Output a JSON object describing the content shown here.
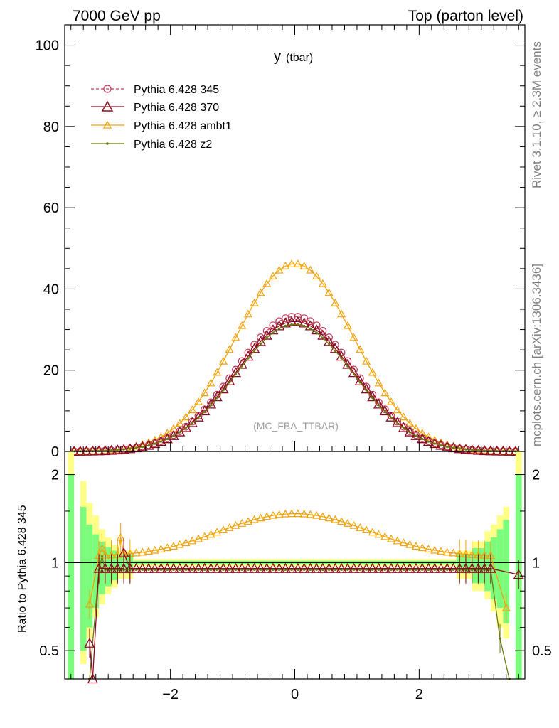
{
  "header": {
    "left": "7000 GeV pp",
    "right": "Top (parton level)"
  },
  "side_labels": {
    "rivet": "Rivet 3.1.10, ≥ 2.3M events",
    "mcplots": "mcplots.cern.ch [arXiv:1306.3436]"
  },
  "colors": {
    "p345": "#c0395a",
    "p370": "#8b0a1e",
    "ambt1": "#f0a30a",
    "z2": "#6b7a12",
    "band_green": "#7cfc7c",
    "band_yellow": "#ffff88"
  },
  "chart_data": [
    {
      "type": "line",
      "title_main": "y",
      "title_sub": "(tbar)",
      "watermark": "(MC_FBA_TTBAR)",
      "xlim": [
        -3.7,
        3.7
      ],
      "ylim": [
        0,
        105
      ],
      "yticks": [
        0,
        20,
        40,
        60,
        80,
        100
      ],
      "xticks": [
        -2,
        0,
        2
      ],
      "grid": false,
      "legend_position": "top-left",
      "peak_y": {
        "p345": 33.2,
        "p370": 32.0,
        "ambt1": 46.2,
        "z2": 31.3
      },
      "gauss_sigma": 0.95,
      "x_range_points": [
        -3.55,
        3.55
      ],
      "n_points": 72,
      "series": [
        {
          "key": "p345",
          "name": "Pythia 6.428 345",
          "marker": "circle",
          "dashed": true
        },
        {
          "key": "p370",
          "name": "Pythia 6.428 370",
          "marker": "triangle-large",
          "dashed": false
        },
        {
          "key": "ambt1",
          "name": "Pythia 6.428 ambt1",
          "marker": "triangle",
          "dashed": false
        },
        {
          "key": "z2",
          "name": "Pythia 6.428 z2",
          "marker": "dot",
          "dashed": false
        }
      ]
    },
    {
      "type": "line",
      "ylabel": "Ratio to Pythia 6.428 345",
      "scale": "log",
      "ylim": [
        0.4,
        2.4
      ],
      "yticks": [
        0.5,
        1,
        2
      ],
      "ytick_labels": [
        "0.5",
        "1",
        "2"
      ],
      "xticks": [
        -2,
        0,
        2
      ],
      "xtick_labels": [
        "−2",
        "0",
        "2"
      ],
      "reference": 1,
      "ratio_series": {
        "p370": {
          "center": 0.955,
          "edge_points": [
            [
              -3.3,
              0.53
            ],
            [
              -3.25,
              0.36
            ],
            [
              -2.75,
              1.08
            ],
            [
              3.6,
              0.91
            ]
          ]
        },
        "ambt1": {
          "peak": 1.47,
          "sigma": 1.1,
          "edge_points": [
            [
              -3.3,
              0.72
            ],
            [
              -3.1,
              1.12
            ],
            [
              -2.8,
              1.22
            ],
            [
              3.4,
              0.7
            ]
          ]
        },
        "z2": {
          "center": 0.945,
          "edge_points": [
            [
              -3.3,
              0.28
            ],
            [
              -3.1,
              1.05
            ],
            [
              3.3,
              0.55
            ],
            [
              3.45,
              0.3
            ]
          ]
        }
      },
      "bands": [
        {
          "x": [
            -3.65,
            -3.55
          ],
          "green": [
            0.4,
            2.0
          ],
          "yellow": [
            0.4,
            2.4
          ]
        },
        {
          "x": [
            -3.45,
            -3.35
          ],
          "green": [
            0.5,
            1.55
          ],
          "yellow": [
            0.45,
            1.9
          ]
        },
        {
          "x": [
            -3.35,
            -3.25
          ],
          "green": [
            0.6,
            1.35
          ],
          "yellow": [
            0.55,
            1.6
          ]
        },
        {
          "x": [
            -3.25,
            -3.15
          ],
          "green": [
            0.7,
            1.25
          ],
          "yellow": [
            0.65,
            1.45
          ]
        },
        {
          "x": [
            -3.15,
            -3.05
          ],
          "green": [
            0.78,
            1.18
          ],
          "yellow": [
            0.72,
            1.3
          ]
        },
        {
          "x": [
            -3.05,
            -2.95
          ],
          "green": [
            0.83,
            1.13
          ],
          "yellow": [
            0.78,
            1.22
          ]
        },
        {
          "x": [
            -2.95,
            -2.85
          ],
          "green": [
            0.87,
            1.1
          ],
          "yellow": [
            0.82,
            1.15
          ]
        },
        {
          "x": [
            -2.85,
            -2.6
          ],
          "green": [
            0.92,
            1.07
          ],
          "yellow": [
            0.88,
            1.1
          ]
        },
        {
          "x": [
            2.6,
            2.85
          ],
          "green": [
            0.92,
            1.07
          ],
          "yellow": [
            0.88,
            1.1
          ]
        },
        {
          "x": [
            2.85,
            3.05
          ],
          "green": [
            0.85,
            1.12
          ],
          "yellow": [
            0.8,
            1.18
          ]
        },
        {
          "x": [
            3.05,
            3.15
          ],
          "green": [
            0.8,
            1.18
          ],
          "yellow": [
            0.75,
            1.28
          ]
        },
        {
          "x": [
            3.15,
            3.25
          ],
          "green": [
            0.75,
            1.22
          ],
          "yellow": [
            0.68,
            1.35
          ]
        },
        {
          "x": [
            3.25,
            3.35
          ],
          "green": [
            0.7,
            1.3
          ],
          "yellow": [
            0.6,
            1.45
          ]
        },
        {
          "x": [
            3.35,
            3.45
          ],
          "green": [
            0.62,
            1.4
          ],
          "yellow": [
            0.55,
            1.55
          ]
        },
        {
          "x": [
            3.55,
            3.65
          ],
          "green": [
            0.4,
            2.0
          ],
          "yellow": [
            0.4,
            2.4
          ]
        }
      ]
    }
  ]
}
